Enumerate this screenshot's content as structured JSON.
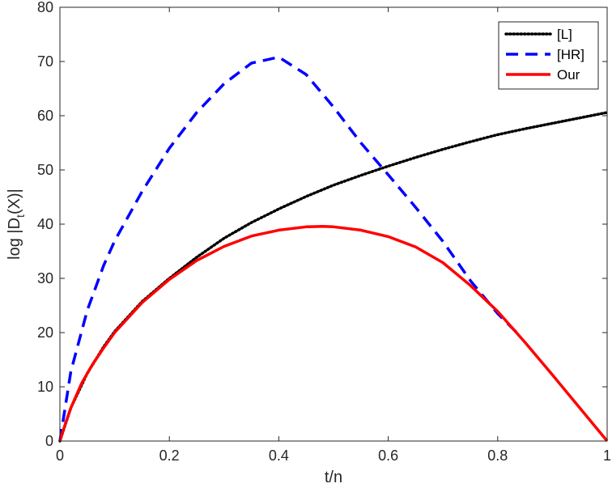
{
  "chart_data": {
    "type": "line",
    "title": "",
    "xlabel": "t/n",
    "ylabel_main": "log |D",
    "ylabel_sub": "t",
    "ylabel_end": "(X)|",
    "xlim": [
      0,
      1
    ],
    "ylim": [
      0,
      80
    ],
    "x_ticks": [
      0,
      0.2,
      0.4,
      0.6,
      0.8,
      1
    ],
    "x_tick_labels": [
      "0",
      "0.2",
      "0.4",
      "0.6",
      "0.8",
      "1"
    ],
    "y_ticks": [
      0,
      10,
      20,
      30,
      40,
      50,
      60,
      70,
      80
    ],
    "y_tick_labels": [
      "0",
      "10",
      "20",
      "30",
      "40",
      "50",
      "60",
      "70",
      "80"
    ],
    "grid": false,
    "legend_position": "top-right",
    "series": [
      {
        "name": "[L]",
        "color": "#000000",
        "style": "dotted",
        "x": [
          0,
          0.02,
          0.05,
          0.08,
          0.1,
          0.15,
          0.2,
          0.25,
          0.3,
          0.35,
          0.4,
          0.45,
          0.5,
          0.55,
          0.6,
          0.65,
          0.7,
          0.75,
          0.8,
          0.85,
          0.9,
          0.95,
          1.0
        ],
        "y": [
          0,
          6.1,
          12.5,
          17.4,
          20.2,
          25.7,
          30.0,
          33.9,
          37.4,
          40.3,
          42.8,
          45.1,
          47.2,
          49.0,
          50.7,
          52.3,
          53.8,
          55.2,
          56.5,
          57.6,
          58.6,
          59.6,
          60.6
        ]
      },
      {
        "name": "[HR]",
        "color": "#0000ff",
        "style": "dashed",
        "x": [
          0,
          0.02,
          0.05,
          0.08,
          0.1,
          0.15,
          0.2,
          0.25,
          0.3,
          0.35,
          0.4,
          0.45,
          0.5,
          0.55,
          0.6,
          0.65,
          0.7,
          0.75,
          0.8,
          0.84
        ],
        "y": [
          0,
          12.8,
          24.1,
          32.4,
          36.9,
          46.0,
          54.0,
          60.6,
          65.9,
          69.7,
          70.8,
          67.6,
          61.6,
          55.0,
          49.1,
          43.1,
          36.8,
          29.6,
          23.5,
          19.5
        ]
      },
      {
        "name": "Our",
        "color": "#ff0000",
        "style": "solid",
        "x": [
          0,
          0.01,
          0.02,
          0.04,
          0.06,
          0.08,
          0.1,
          0.15,
          0.2,
          0.25,
          0.3,
          0.35,
          0.4,
          0.45,
          0.48,
          0.5,
          0.55,
          0.6,
          0.65,
          0.7,
          0.75,
          0.8,
          0.85,
          0.9,
          0.95,
          1.0
        ],
        "y": [
          0,
          3.2,
          6.1,
          10.7,
          14.2,
          17.2,
          20.0,
          25.5,
          29.8,
          33.3,
          35.9,
          37.8,
          38.9,
          39.5,
          39.6,
          39.5,
          38.9,
          37.7,
          35.8,
          32.9,
          28.7,
          23.9,
          18.2,
          12.2,
          6.1,
          0
        ]
      }
    ]
  }
}
